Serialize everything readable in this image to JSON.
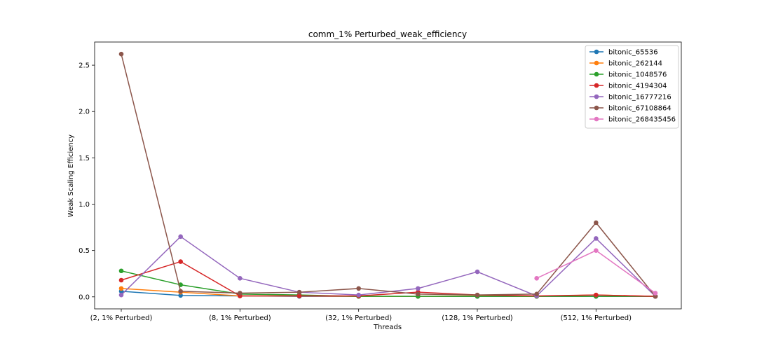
{
  "chart_data": {
    "type": "line",
    "title": "comm_1% Perturbed_weak_efficiency",
    "xlabel": "Threads",
    "ylabel": "Weak Scaling Efficiency",
    "categories": [
      "(2, 1% Perturbed)",
      "",
      "(8, 1% Perturbed)",
      "",
      "(32, 1% Perturbed)",
      "",
      "(128, 1% Perturbed)",
      "",
      "(512, 1% Perturbed)",
      ""
    ],
    "xtick_labels": [
      "(2, 1% Perturbed)",
      "(8, 1% Perturbed)",
      "(32, 1% Perturbed)",
      "(128, 1% Perturbed)",
      "(512, 1% Perturbed)"
    ],
    "yticks": [
      "0.0",
      "0.5",
      "1.0",
      "1.5",
      "2.0",
      "2.5"
    ],
    "ylim": [
      -0.13,
      2.75
    ],
    "grid": false,
    "legend_position": "top-right",
    "series": [
      {
        "name": "bitonic_65536",
        "color": "#1f77b4",
        "values": [
          0.06,
          0.015,
          0.01,
          0.005,
          0.005,
          0.005,
          0.005,
          0.005,
          0.005,
          0.005
        ]
      },
      {
        "name": "bitonic_262144",
        "color": "#ff7f0e",
        "values": [
          0.09,
          0.05,
          0.01,
          0.01,
          0.005,
          0.005,
          0.01,
          0.005,
          0.02,
          0.005
        ]
      },
      {
        "name": "bitonic_1048576",
        "color": "#2ca02c",
        "values": [
          0.28,
          0.13,
          0.03,
          0.02,
          0.005,
          0.005,
          0.005,
          0.005,
          0.005,
          0.005
        ]
      },
      {
        "name": "bitonic_4194304",
        "color": "#d62728",
        "values": [
          0.18,
          0.38,
          0.01,
          0.01,
          0.01,
          0.05,
          0.02,
          0.01,
          0.02,
          0.005
        ]
      },
      {
        "name": "bitonic_16777216",
        "color": "#9467bd",
        "values": [
          0.02,
          0.65,
          0.2,
          0.05,
          0.02,
          0.09,
          0.27,
          0.01,
          0.63,
          0.005
        ]
      },
      {
        "name": "bitonic_67108864",
        "color": "#8c564b",
        "values": [
          2.62,
          0.06,
          0.04,
          0.05,
          0.09,
          0.03,
          0.02,
          0.03,
          0.8,
          0.005
        ]
      },
      {
        "name": "bitonic_268435456",
        "color": "#e377c2",
        "values": [
          null,
          null,
          null,
          null,
          null,
          null,
          null,
          0.2,
          0.5,
          0.04
        ]
      }
    ]
  }
}
